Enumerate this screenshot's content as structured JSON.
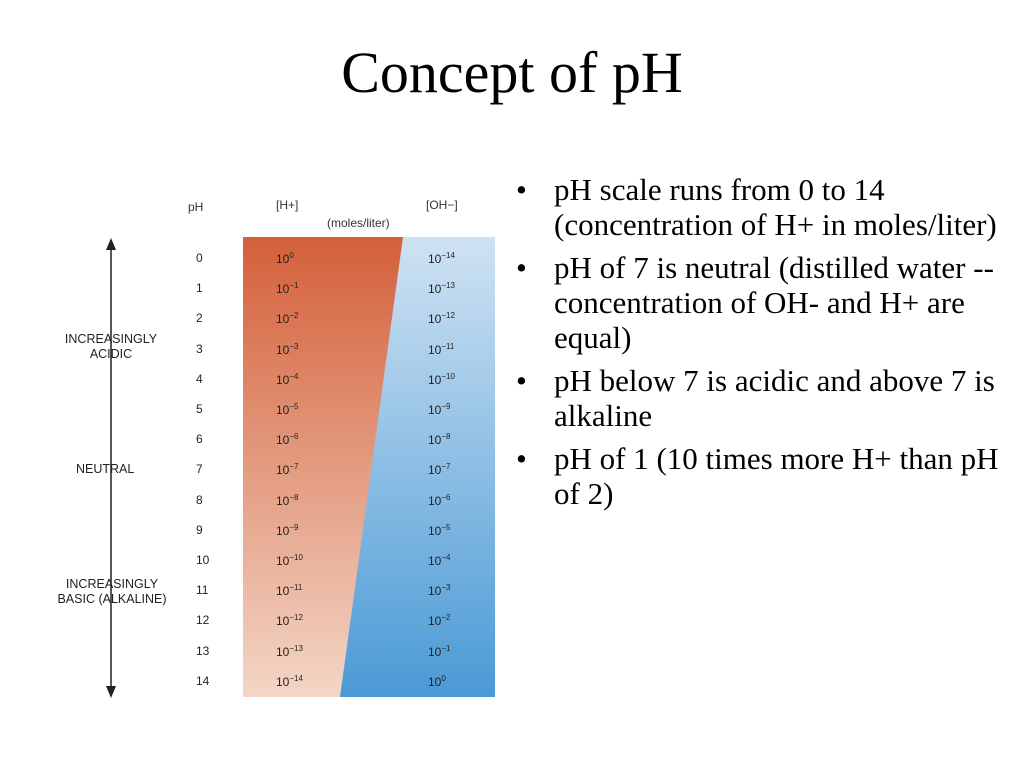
{
  "title": "Concept of pH",
  "diagram": {
    "col_ph": "pH",
    "col_h": "[H+]",
    "col_oh": "[OH−]",
    "units": "(moles/liter)",
    "label_acidic": [
      "INCREASINGLY",
      "ACIDIC"
    ],
    "label_neutral": "NEUTRAL",
    "label_basic": [
      "INCREASINGLY",
      "BASIC (ALKALINE)"
    ],
    "rows": [
      {
        "ph": "0",
        "h_exp": "0",
        "oh_exp": "−14"
      },
      {
        "ph": "1",
        "h_exp": "−1",
        "oh_exp": "−13"
      },
      {
        "ph": "2",
        "h_exp": "−2",
        "oh_exp": "−12"
      },
      {
        "ph": "3",
        "h_exp": "−3",
        "oh_exp": "−11"
      },
      {
        "ph": "4",
        "h_exp": "−4",
        "oh_exp": "−10"
      },
      {
        "ph": "5",
        "h_exp": "−5",
        "oh_exp": "−9"
      },
      {
        "ph": "6",
        "h_exp": "−6",
        "oh_exp": "−8"
      },
      {
        "ph": "7",
        "h_exp": "−7",
        "oh_exp": "−7"
      },
      {
        "ph": "8",
        "h_exp": "−8",
        "oh_exp": "−6"
      },
      {
        "ph": "9",
        "h_exp": "−9",
        "oh_exp": "−5"
      },
      {
        "ph": "10",
        "h_exp": "−10",
        "oh_exp": "−4"
      },
      {
        "ph": "11",
        "h_exp": "−11",
        "oh_exp": "−3"
      },
      {
        "ph": "12",
        "h_exp": "−12",
        "oh_exp": "−2"
      },
      {
        "ph": "13",
        "h_exp": "−13",
        "oh_exp": "−1"
      },
      {
        "ph": "14",
        "h_exp": "−14",
        "oh_exp": "0"
      }
    ],
    "base": "10",
    "colors": {
      "acid_top": "#d4603a",
      "acid_bottom": "#f3d6c6",
      "base_top": "#cfe2f2",
      "base_bottom": "#4a9ad6"
    }
  },
  "bullets": [
    "pH scale runs from 0 to 14 (concentration of H+ in moles/liter)",
    "pH of 7 is neutral (distilled water -- concentration of OH- and H+ are equal)",
    "pH below 7 is acidic and above 7 is alkaline",
    "pH of 1 (10 times more H+ than pH of 2)"
  ]
}
